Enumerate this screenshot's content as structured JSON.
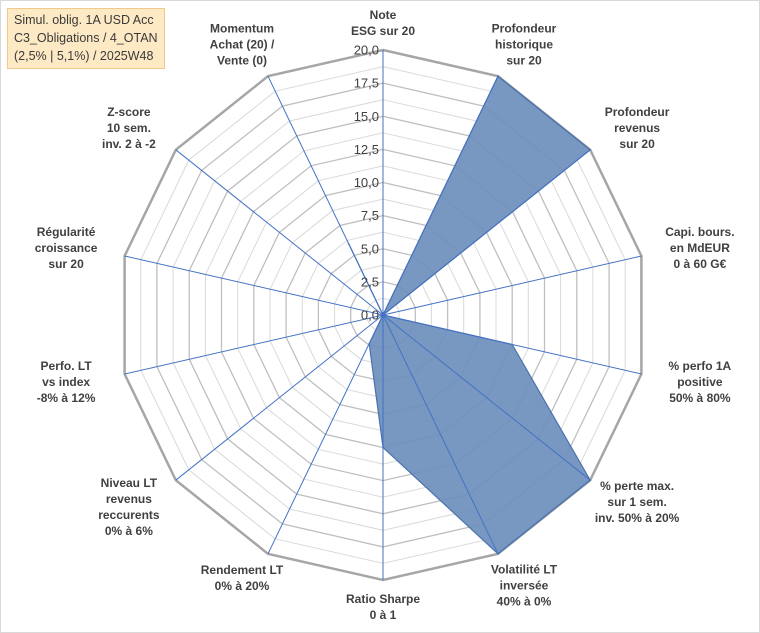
{
  "title_lines": [
    "Simul. oblig. 1A USD Acc",
    "C3_Obligations / 4_OTAN",
    "(2,5% | 5,1%) / 2025W48"
  ],
  "chart_data": {
    "type": "radar",
    "rmin": 0,
    "rmax": 20,
    "ticks": [
      "0,0",
      "2,5",
      "5,0",
      "7,5",
      "10,0",
      "12,5",
      "15,0",
      "17,5",
      "20,0"
    ],
    "axes": [
      {
        "label": [
          "Note",
          "ESG sur 20"
        ],
        "value": 0
      },
      {
        "label": [
          "Profondeur",
          "historique",
          "sur 20"
        ],
        "value": 20
      },
      {
        "label": [
          "Profondeur",
          "revenus",
          "sur 20"
        ],
        "value": 20
      },
      {
        "label": [
          "Capi. bours.",
          "en MdEUR",
          "0 à 60 G€"
        ],
        "value": 0
      },
      {
        "label": [
          "% perfo 1A",
          "positive",
          "50% à 80%"
        ],
        "value": 10
      },
      {
        "label": [
          "% perte max.",
          "sur 1 sem.",
          "inv. 50% à 20%"
        ],
        "value": 20
      },
      {
        "label": [
          "Volatilité LT",
          "inversée",
          "40% à 0%"
        ],
        "value": 20
      },
      {
        "label": [
          "Ratio Sharpe",
          "0 à 1"
        ],
        "value": 10
      },
      {
        "label": [
          "Rendement LT",
          "0% à 20%"
        ],
        "value": 2.4
      },
      {
        "label": [
          "Niveau LT",
          "revenus",
          "reccurents",
          "0% à 6%"
        ],
        "value": 0
      },
      {
        "label": [
          "Perfo. LT",
          "vs index",
          "-8% à 12%"
        ],
        "value": 0
      },
      {
        "label": [
          "Régularité",
          "croissance",
          "sur 20"
        ],
        "value": 0
      },
      {
        "label": [
          "Z-score",
          "10 sem.",
          "inv. 2 à -2"
        ],
        "value": 0
      },
      {
        "label": [
          "Momentum",
          "Achat (20) /",
          "Vente (0)"
        ],
        "value": 6
      }
    ],
    "colors": {
      "fill": "#6d8fbd",
      "stroke": "#4a72ad",
      "spoke": "#4472c4",
      "grid_major": "#bfbfbf",
      "grid_minor": "#d9d9d9",
      "outer": "#a6a6a6"
    }
  }
}
